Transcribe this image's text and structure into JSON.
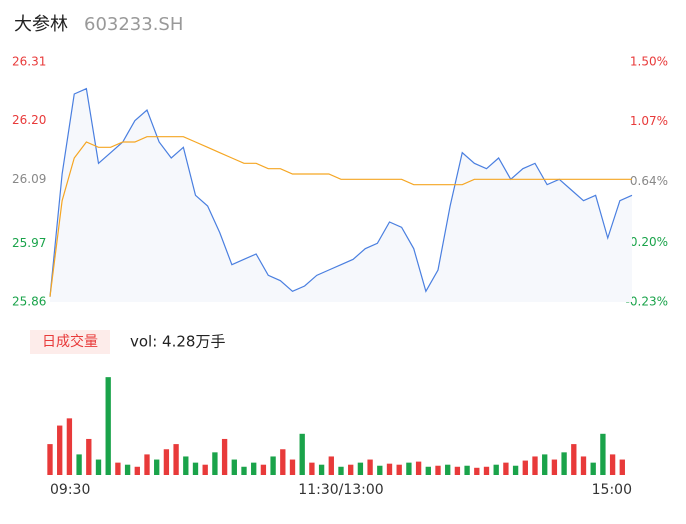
{
  "chart_data": [
    {
      "type": "line",
      "title": "大参林",
      "subtitle": "603233.SH",
      "xlim": [
        0,
        240
      ],
      "x": [
        0,
        5,
        10,
        15,
        20,
        25,
        30,
        35,
        40,
        45,
        50,
        55,
        60,
        65,
        70,
        75,
        80,
        85,
        90,
        95,
        100,
        105,
        110,
        115,
        120,
        125,
        130,
        135,
        140,
        145,
        150,
        155,
        160,
        165,
        170,
        175,
        180,
        185,
        190,
        195,
        200,
        205,
        210,
        215,
        220,
        225,
        230,
        235,
        240
      ],
      "series": [
        {
          "color": "#4a7fe0",
          "values": [
            25.87,
            26.1,
            26.25,
            26.26,
            26.12,
            26.14,
            26.16,
            26.2,
            26.22,
            26.16,
            26.13,
            26.15,
            26.06,
            26.04,
            25.99,
            25.93,
            25.94,
            25.95,
            25.91,
            25.9,
            25.88,
            25.89,
            25.91,
            25.92,
            25.93,
            25.94,
            25.96,
            25.97,
            26.01,
            26.0,
            25.96,
            25.88,
            25.92,
            26.04,
            26.14,
            26.12,
            26.11,
            26.13,
            26.09,
            26.11,
            26.12,
            26.08,
            26.09,
            26.07,
            26.05,
            26.06,
            25.98,
            26.05,
            26.06
          ]
        },
        {
          "color": "#f5a623",
          "values": [
            25.87,
            26.05,
            26.13,
            26.16,
            26.15,
            26.15,
            26.16,
            26.16,
            26.17,
            26.17,
            26.17,
            26.17,
            26.16,
            26.15,
            26.14,
            26.13,
            26.12,
            26.12,
            26.11,
            26.11,
            26.1,
            26.1,
            26.1,
            26.1,
            26.09,
            26.09,
            26.09,
            26.09,
            26.09,
            26.09,
            26.08,
            26.08,
            26.08,
            26.08,
            26.08,
            26.09,
            26.09,
            26.09,
            26.09,
            26.09,
            26.09,
            26.09,
            26.09,
            26.09,
            26.09,
            26.09,
            26.09,
            26.09,
            26.09
          ]
        }
      ],
      "ylim": [
        25.86,
        26.31
      ],
      "yticks": [
        26.31,
        {
          "value": 26.2,
          "label": "26.20"
        },
        26.09,
        25.97,
        25.86
      ],
      "ytick_colors": [
        "#e83a3a",
        "#e83a3a",
        "#888888",
        "#1aa34a",
        "#1aa34a"
      ],
      "y2lim": [
        -0.23,
        1.5
      ],
      "y2ticks": [
        {
          "value": 1.5,
          "label": "1.50%"
        },
        {
          "value": 1.07,
          "label": "1.07%"
        },
        {
          "value": 0.64,
          "label": "0.64%"
        },
        {
          "value": 0.2,
          "label": "0.20%"
        },
        {
          "value": -0.23,
          "label": "-0.23%"
        }
      ],
      "area_color": "#f6f8fc"
    },
    {
      "type": "bar",
      "title": "日成交量",
      "annotation": "vol: 4.28万手",
      "xlim": [
        0,
        240
      ],
      "ylim": [
        0,
        100
      ],
      "xticks": [
        {
          "value": 0,
          "label": "09:30"
        },
        {
          "value": 120,
          "label": "11:30/13:00"
        },
        {
          "value": 240,
          "label": "15:00"
        }
      ],
      "x": [
        0,
        4,
        8,
        12,
        16,
        20,
        24,
        28,
        32,
        36,
        40,
        44,
        48,
        52,
        56,
        60,
        64,
        68,
        72,
        76,
        80,
        84,
        88,
        92,
        96,
        100,
        104,
        108,
        112,
        116,
        120,
        124,
        128,
        132,
        136,
        140,
        144,
        148,
        152,
        156,
        160,
        164,
        168,
        172,
        176,
        180,
        184,
        188,
        192,
        196,
        200,
        204,
        208,
        212,
        216,
        220,
        224,
        228,
        232,
        236
      ],
      "values": [
        30,
        48,
        55,
        20,
        35,
        15,
        95,
        12,
        10,
        8,
        20,
        15,
        25,
        30,
        18,
        12,
        10,
        22,
        35,
        15,
        8,
        12,
        10,
        18,
        25,
        15,
        40,
        12,
        10,
        18,
        8,
        10,
        12,
        15,
        9,
        11,
        10,
        12,
        13,
        8,
        9,
        10,
        8,
        9,
        7,
        8,
        10,
        12,
        9,
        14,
        18,
        20,
        15,
        22,
        30,
        18,
        12,
        40,
        20,
        15
      ],
      "colors": [
        "#e83a3a",
        "#e83a3a",
        "#e83a3a",
        "#1aa34a",
        "#e83a3a",
        "#1aa34a",
        "#1aa34a",
        "#e83a3a",
        "#1aa34a",
        "#e83a3a",
        "#e83a3a",
        "#1aa34a",
        "#e83a3a",
        "#e83a3a",
        "#1aa34a",
        "#1aa34a",
        "#e83a3a",
        "#1aa34a",
        "#e83a3a",
        "#1aa34a",
        "#1aa34a",
        "#1aa34a",
        "#e83a3a",
        "#1aa34a",
        "#e83a3a",
        "#e83a3a",
        "#1aa34a",
        "#e83a3a",
        "#1aa34a",
        "#e83a3a",
        "#1aa34a",
        "#e83a3a",
        "#1aa34a",
        "#e83a3a",
        "#1aa34a",
        "#e83a3a",
        "#e83a3a",
        "#1aa34a",
        "#e83a3a",
        "#1aa34a",
        "#e83a3a",
        "#1aa34a",
        "#e83a3a",
        "#1aa34a",
        "#e83a3a",
        "#e83a3a",
        "#1aa34a",
        "#e83a3a",
        "#1aa34a",
        "#e83a3a",
        "#e83a3a",
        "#1aa34a",
        "#e83a3a",
        "#1aa34a",
        "#e83a3a",
        "#e83a3a",
        "#1aa34a",
        "#1aa34a",
        "#e83a3a",
        "#e83a3a"
      ]
    }
  ]
}
